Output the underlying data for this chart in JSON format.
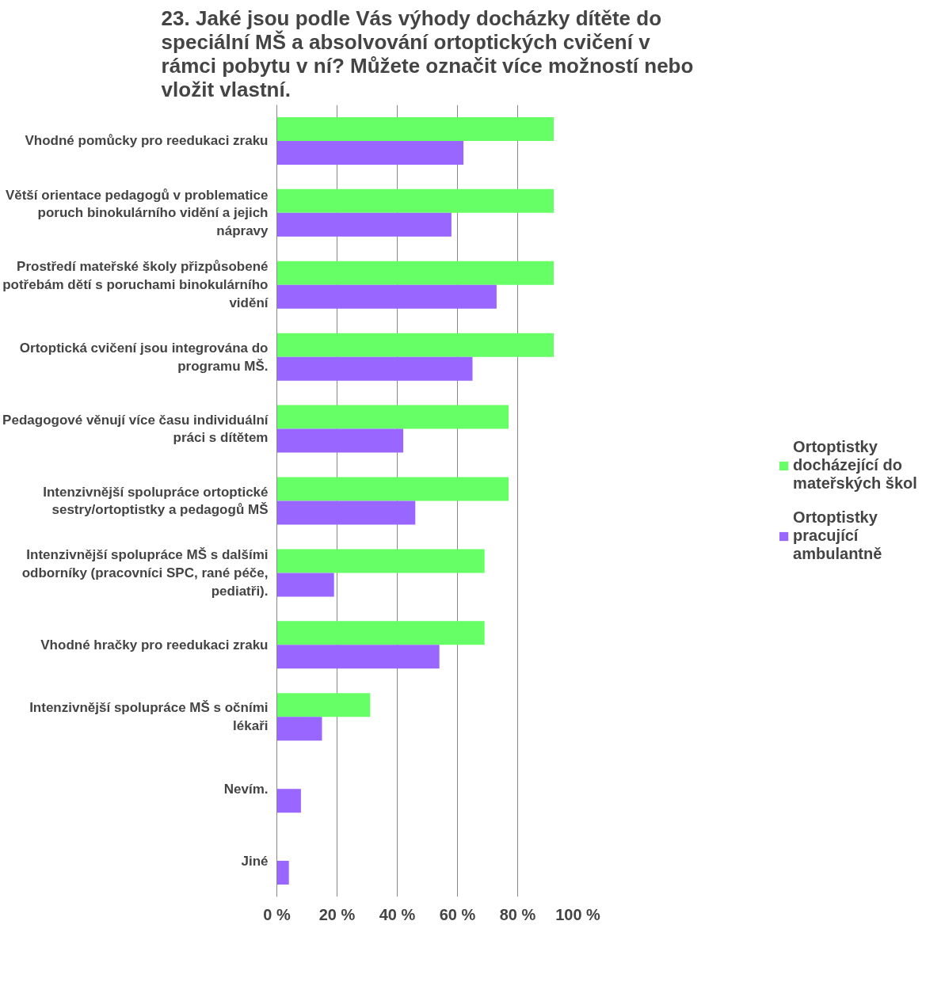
{
  "chart_data": {
    "type": "bar",
    "orientation": "horizontal",
    "title": "23. Jaké jsou podle Vás výhody docházky dítěte do speciální MŠ a absolvování ortoptických cvičení v rámci pobytu v ní? Můžete označit více možností nebo vložit vlastní.",
    "categories": [
      "Vhodné pomůcky pro reedukaci zraku",
      "Větší orientace pedagogů v problematice poruch binokulárního vidění a jejich nápravy",
      "Prostředí mateřské školy přizpůsobené potřebám dětí s poruchami binokulárního vidění",
      "Ortoptická cvičení jsou integrována do programu MŠ.",
      "Pedagogové věnují více času individuální práci s dítětem",
      "Intenzivnější spolupráce ortoptické sestry/ortoptistky a pedagogů MŠ",
      "Intenzivnější spolupráce MŠ s dalšími odborníky (pracovníci SPC, rané péče, pediatři).",
      "Vhodné hračky pro reedukaci zraku",
      "Intenzivnější spolupráce MŠ s očními lékaři",
      "Nevím.",
      "Jiné"
    ],
    "series": [
      {
        "name": "Ortoptistky docházející do mateřských škol",
        "color": "#66ff66",
        "values": [
          92,
          92,
          92,
          92,
          77,
          77,
          69,
          69,
          31,
          null,
          null
        ]
      },
      {
        "name": "Ortoptistky pracující ambulantně",
        "color": "#9966ff",
        "values": [
          62,
          58,
          73,
          65,
          42,
          46,
          19,
          54,
          15,
          8,
          4
        ]
      }
    ],
    "xlim": [
      0,
      100
    ],
    "xticks": [
      {
        "value": 0,
        "label": "0 %"
      },
      {
        "value": 20,
        "label": "20 %"
      },
      {
        "value": 40,
        "label": "40 %"
      },
      {
        "value": 60,
        "label": "60 %"
      },
      {
        "value": 80,
        "label": "80 %"
      },
      {
        "value": 100,
        "label": "100 %"
      }
    ],
    "grid": "x",
    "legend": "right"
  }
}
